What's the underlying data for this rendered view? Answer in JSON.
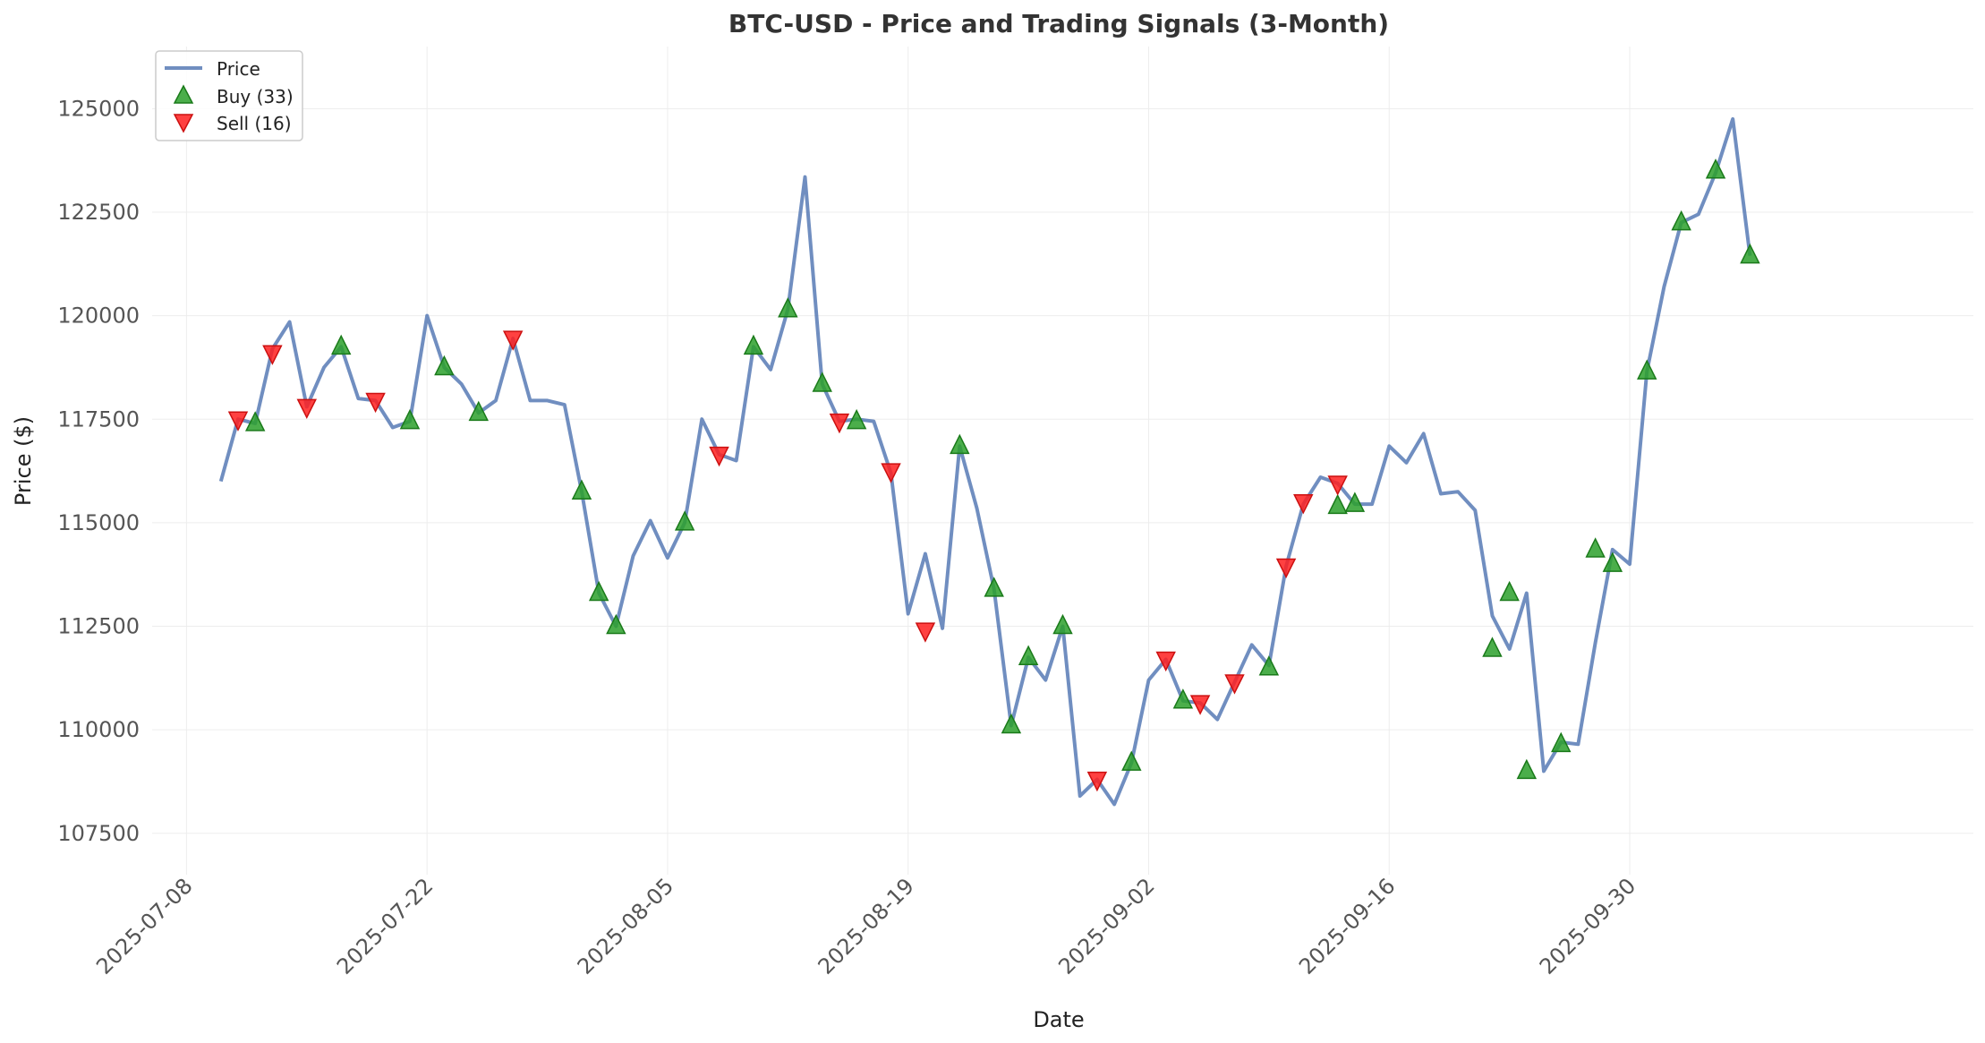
{
  "chart_data": {
    "type": "line",
    "title": "BTC-USD - Price and Trading Signals (3-Month)",
    "xlabel": "Date",
    "ylabel": "Price ($)",
    "xlim": [
      "2025-07-06",
      "2025-10-20"
    ],
    "ylim": [
      106500,
      126500
    ],
    "grid": true,
    "legend_placement": "top-left",
    "x_ticks": [
      "2025-07-08",
      "2025-07-22",
      "2025-08-05",
      "2025-08-19",
      "2025-09-02",
      "2025-09-16",
      "2025-09-30"
    ],
    "y_ticks": [
      107500,
      110000,
      112500,
      115000,
      117500,
      120000,
      122500,
      125000
    ],
    "series": [
      {
        "name": "Price",
        "color": "#4c72b0",
        "x": [
          "2025-07-10",
          "2025-07-11",
          "2025-07-12",
          "2025-07-13",
          "2025-07-14",
          "2025-07-15",
          "2025-07-16",
          "2025-07-17",
          "2025-07-18",
          "2025-07-19",
          "2025-07-20",
          "2025-07-21",
          "2025-07-22",
          "2025-07-23",
          "2025-07-24",
          "2025-07-25",
          "2025-07-26",
          "2025-07-27",
          "2025-07-28",
          "2025-07-29",
          "2025-07-30",
          "2025-07-31",
          "2025-08-01",
          "2025-08-02",
          "2025-08-03",
          "2025-08-04",
          "2025-08-05",
          "2025-08-06",
          "2025-08-07",
          "2025-08-08",
          "2025-08-09",
          "2025-08-10",
          "2025-08-11",
          "2025-08-12",
          "2025-08-13",
          "2025-08-14",
          "2025-08-15",
          "2025-08-16",
          "2025-08-17",
          "2025-08-18",
          "2025-08-19",
          "2025-08-20",
          "2025-08-21",
          "2025-08-22",
          "2025-08-23",
          "2025-08-24",
          "2025-08-25",
          "2025-08-26",
          "2025-08-27",
          "2025-08-28",
          "2025-08-29",
          "2025-08-30",
          "2025-08-31",
          "2025-09-01",
          "2025-09-02",
          "2025-09-03",
          "2025-09-04",
          "2025-09-05",
          "2025-09-06",
          "2025-09-07",
          "2025-09-08",
          "2025-09-09",
          "2025-09-10",
          "2025-09-11",
          "2025-09-12",
          "2025-09-13",
          "2025-09-14",
          "2025-09-15",
          "2025-09-16",
          "2025-09-17",
          "2025-09-18",
          "2025-09-19",
          "2025-09-20",
          "2025-09-21",
          "2025-09-22",
          "2025-09-23",
          "2025-09-24",
          "2025-09-25",
          "2025-09-26",
          "2025-09-27",
          "2025-09-28",
          "2025-09-29",
          "2025-09-30",
          "2025-10-01",
          "2025-10-02",
          "2025-10-03",
          "2025-10-04",
          "2025-10-05",
          "2025-10-06",
          "2025-10-07"
        ],
        "y": [
          116000,
          117500,
          117400,
          119200,
          119850,
          117800,
          118750,
          119250,
          118000,
          117950,
          117300,
          117450,
          120000,
          118750,
          118350,
          117650,
          117950,
          119450,
          117950,
          117950,
          117850,
          115750,
          113300,
          112500,
          114200,
          115050,
          114150,
          115000,
          117500,
          116650,
          116500,
          119250,
          118700,
          120150,
          123350,
          118350,
          117450,
          117500,
          117450,
          116200,
          112800,
          114250,
          112450,
          116850,
          115350,
          113400,
          110100,
          111750,
          111200,
          112500,
          108400,
          108800,
          108200,
          109200,
          111200,
          111700,
          110700,
          110650,
          110250,
          111150,
          112050,
          111550,
          113950,
          115450,
          116100,
          115950,
          115450,
          115450,
          116850,
          116450,
          117150,
          115700,
          115750,
          115300,
          112750,
          111950,
          113300,
          109000,
          109700,
          109650,
          112100,
          114350,
          114000,
          118650,
          120700,
          122250,
          122450,
          123450,
          124750,
          121450
        ]
      },
      {
        "name": "Buy (33)",
        "marker": "triangle-up",
        "color": "#2ca02c",
        "x": [
          "2025-07-12",
          "2025-07-17",
          "2025-07-21",
          "2025-07-23",
          "2025-07-25",
          "2025-07-31",
          "2025-08-01",
          "2025-08-02",
          "2025-08-06",
          "2025-08-10",
          "2025-08-12",
          "2025-08-14",
          "2025-08-16",
          "2025-08-22",
          "2025-08-24",
          "2025-08-25",
          "2025-08-26",
          "2025-08-28",
          "2025-09-01",
          "2025-09-04",
          "2025-09-09",
          "2025-09-13",
          "2025-09-14",
          "2025-09-22",
          "2025-09-23",
          "2025-09-24",
          "2025-09-26",
          "2025-09-28",
          "2025-09-29",
          "2025-10-01",
          "2025-10-03",
          "2025-10-05",
          "2025-10-07"
        ],
        "y": [
          117400,
          119250,
          117450,
          118750,
          117650,
          115750,
          113300,
          112500,
          115000,
          119250,
          120150,
          118350,
          117450,
          116850,
          113400,
          110100,
          111750,
          112500,
          109200,
          110700,
          111500,
          115400,
          115450,
          111950,
          113300,
          109000,
          109650,
          114350,
          114000,
          118650,
          122250,
          123500,
          121450
        ]
      },
      {
        "name": "Sell (16)",
        "marker": "triangle-down",
        "color": "#ff2020",
        "x": [
          "2025-07-11",
          "2025-07-13",
          "2025-07-15",
          "2025-07-19",
          "2025-07-27",
          "2025-08-08",
          "2025-08-15",
          "2025-08-18",
          "2025-08-20",
          "2025-08-30",
          "2025-09-03",
          "2025-09-05",
          "2025-09-07",
          "2025-09-10",
          "2025-09-11",
          "2025-09-13"
        ],
        "y": [
          117500,
          119100,
          117800,
          117950,
          119450,
          116650,
          117450,
          116250,
          112400,
          108800,
          111700,
          110650,
          111150,
          113950,
          115500,
          115950
        ]
      }
    ]
  }
}
